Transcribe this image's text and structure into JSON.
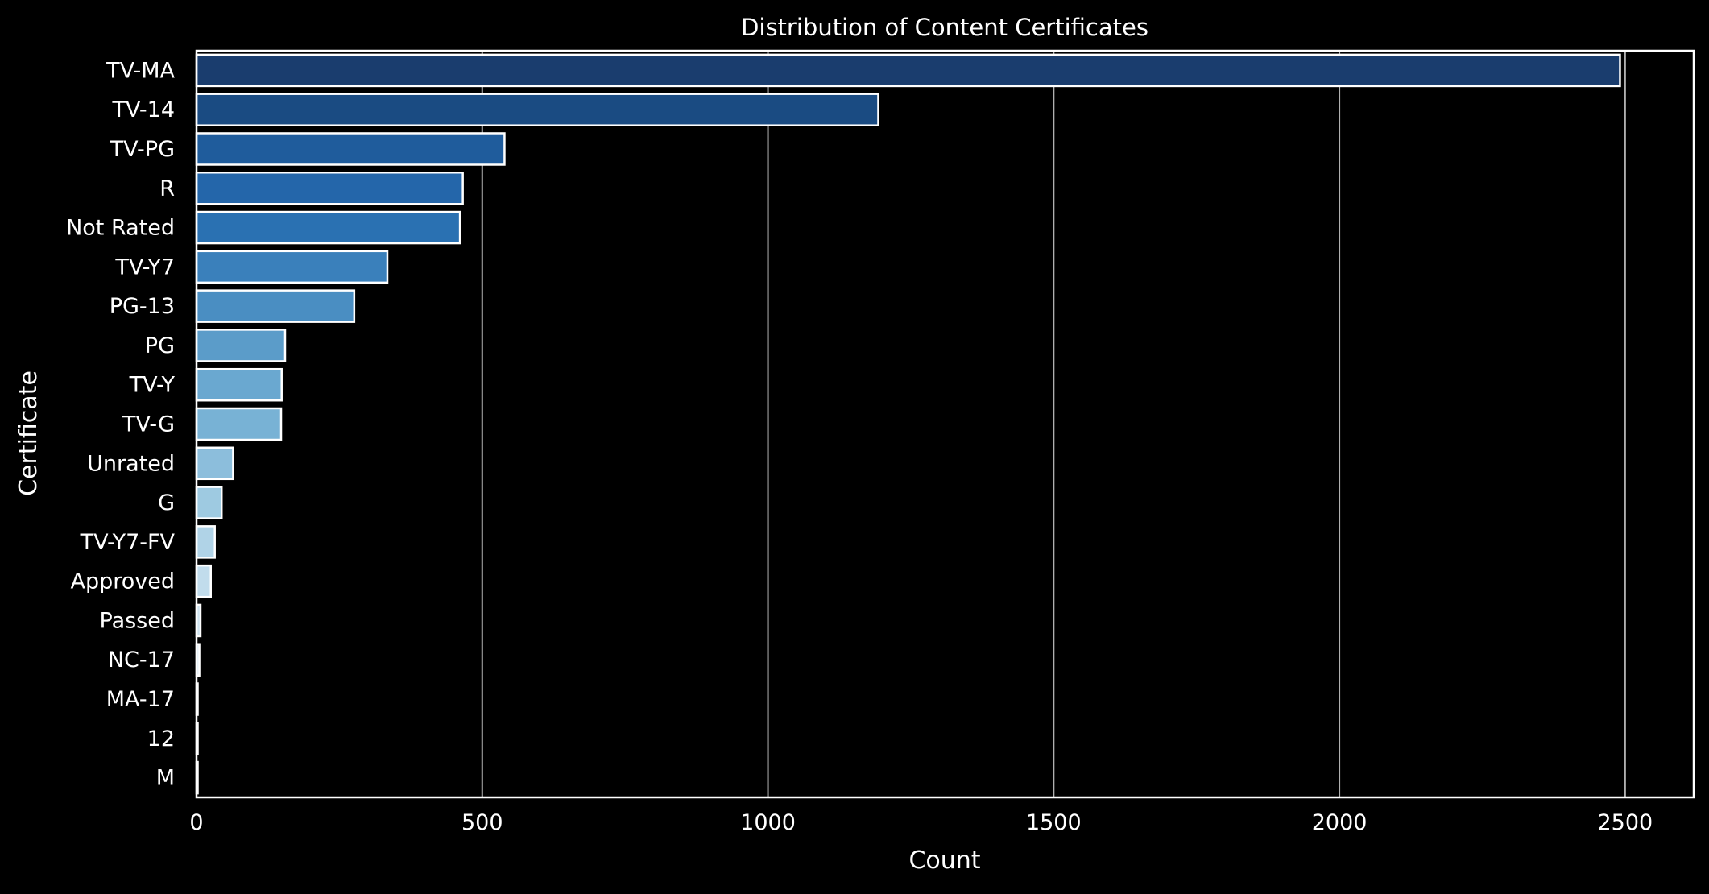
{
  "chart_data": {
    "type": "bar",
    "orientation": "horizontal",
    "title": "Distribution of Content Certificates",
    "xlabel": "Count",
    "ylabel": "Certificate",
    "xlim": [
      0,
      2620
    ],
    "xticks": [
      0,
      500,
      1000,
      1500,
      2000,
      2500
    ],
    "grid": "vertical",
    "categories": [
      "TV-MA",
      "TV-14",
      "TV-PG",
      "R",
      "Not Rated",
      "TV-Y7",
      "PG-13",
      "PG",
      "TV-Y",
      "TV-G",
      "Unrated",
      "G",
      "TV-Y7-FV",
      "Approved",
      "Passed",
      "NC-17",
      "MA-17",
      "12",
      "M"
    ],
    "values": [
      2491,
      1193,
      539,
      466,
      461,
      334,
      276,
      155,
      149,
      148,
      64,
      44,
      32,
      25,
      7,
      5,
      2,
      2,
      1
    ],
    "colors": [
      "#1a3d6e",
      "#1a4b82",
      "#1f5c9c",
      "#2466aa",
      "#2a71b2",
      "#3a80bb",
      "#4a8ec2",
      "#5b9cc9",
      "#6aa8d0",
      "#78b2d5",
      "#8cbedc",
      "#9ecae1",
      "#b0d3e7",
      "#c1dcec",
      "#cfe3f0",
      "#dae9f4",
      "#e3eef7",
      "#eaf2f9",
      "#f0f6fb"
    ]
  }
}
